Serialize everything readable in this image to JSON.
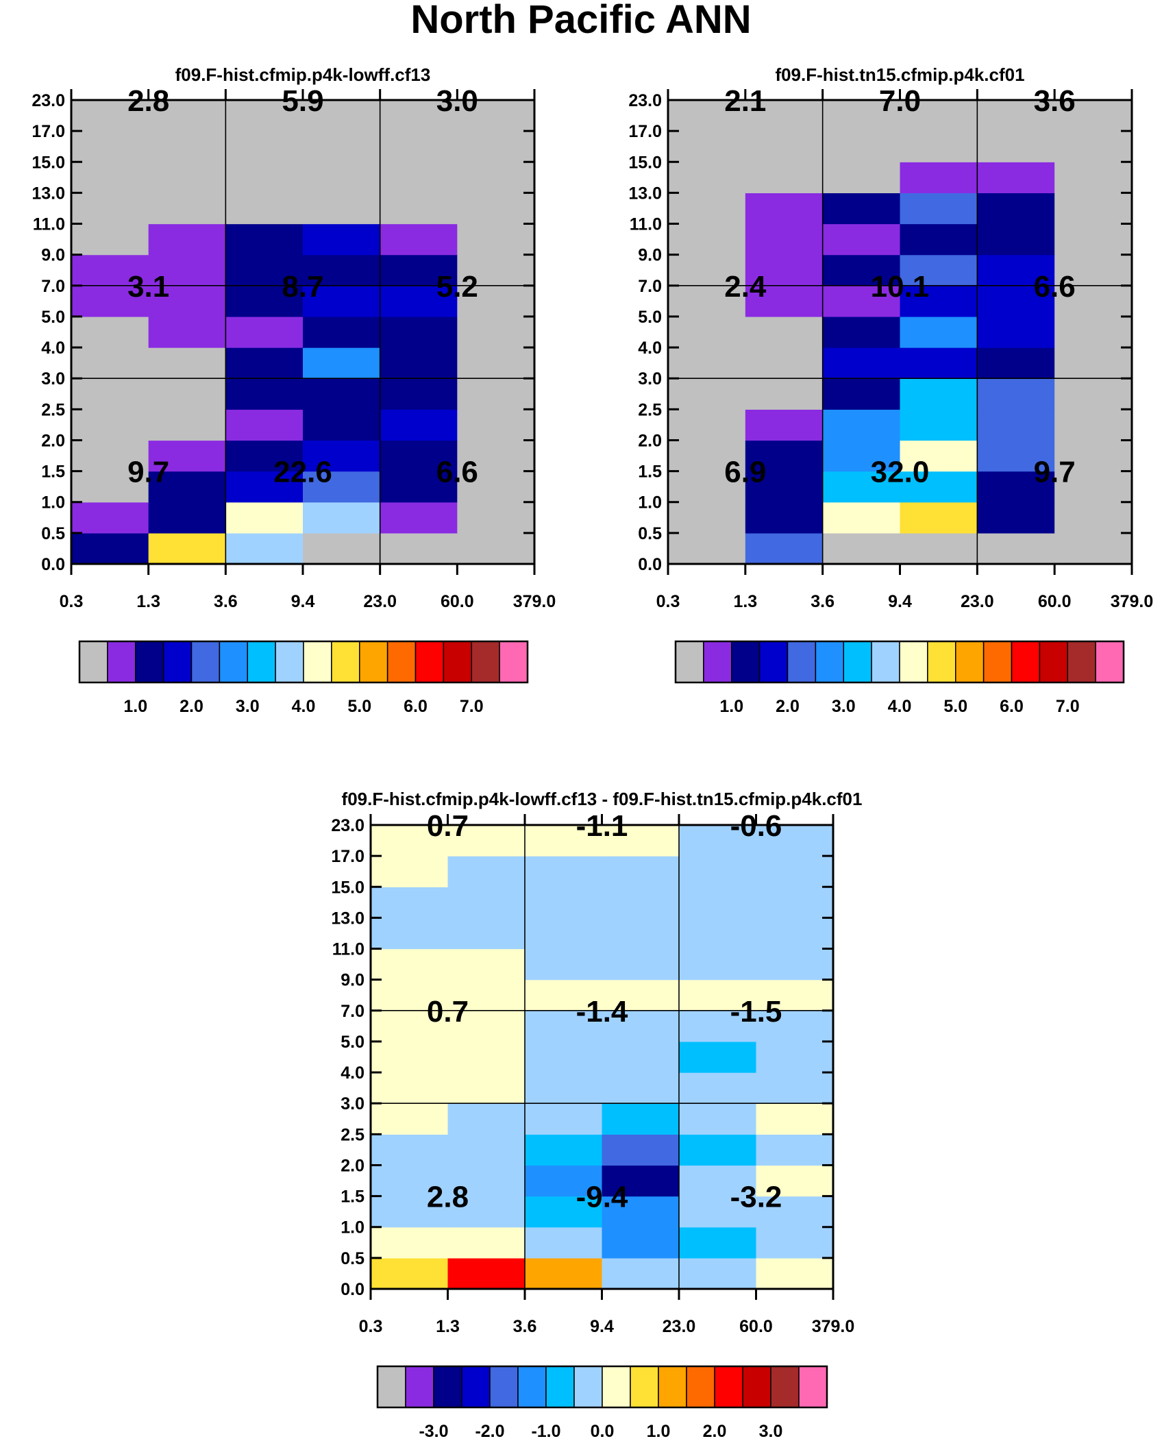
{
  "page_title": "North Pacific ANN",
  "chart_data": [
    {
      "type": "heatmap",
      "title": "f09.F-hist.cfmip.p4k-lowff.cf13",
      "x_tick_labels": [
        "0.3",
        "1.3",
        "3.6",
        "9.4",
        "23.0",
        "60.0",
        "379.0"
      ],
      "y_tick_labels": [
        "0.0",
        "0.5",
        "1.0",
        "1.5",
        "2.0",
        "2.5",
        "3.0",
        "4.0",
        "5.0",
        "7.0",
        "9.0",
        "11.0",
        "13.0",
        "15.0",
        "17.0",
        "23.0"
      ],
      "cells_bottom_to_top": [
        [
          2,
          9,
          7,
          0,
          0,
          0
        ],
        [
          1,
          2,
          8,
          7,
          1,
          0
        ],
        [
          0,
          2,
          3,
          4,
          2,
          0
        ],
        [
          0,
          1,
          2,
          3,
          2,
          0
        ],
        [
          0,
          0,
          1,
          2,
          3,
          0
        ],
        [
          0,
          0,
          2,
          2,
          2,
          0
        ],
        [
          0,
          0,
          2,
          5,
          2,
          0
        ],
        [
          0,
          1,
          1,
          2,
          2,
          0
        ],
        [
          1,
          1,
          2,
          3,
          3,
          0
        ],
        [
          1,
          1,
          2,
          2,
          2,
          0
        ],
        [
          0,
          1,
          2,
          3,
          1,
          0
        ],
        [
          0,
          0,
          0,
          0,
          0,
          0
        ],
        [
          0,
          0,
          0,
          0,
          0,
          0
        ],
        [
          0,
          0,
          0,
          0,
          0,
          0
        ],
        [
          0,
          0,
          0,
          0,
          0,
          0
        ]
      ],
      "region_labels": [
        {
          "col": 0,
          "row": 0,
          "value": "9.7"
        },
        {
          "col": 1,
          "row": 0,
          "value": "22.6"
        },
        {
          "col": 2,
          "row": 0,
          "value": "6.6"
        },
        {
          "col": 0,
          "row": 1,
          "value": "3.1"
        },
        {
          "col": 1,
          "row": 1,
          "value": "8.7"
        },
        {
          "col": 2,
          "row": 1,
          "value": "5.2"
        },
        {
          "col": 0,
          "row": 2,
          "value": "2.8"
        },
        {
          "col": 1,
          "row": 2,
          "value": "5.9"
        },
        {
          "col": 2,
          "row": 2,
          "value": "3.0"
        }
      ],
      "legend": {
        "colors": [
          "#c0c0c0",
          "#8a2be2",
          "#00008b",
          "#0000cd",
          "#4169e1",
          "#1e90ff",
          "#00bfff",
          "#a0d2ff",
          "#ffffcc",
          "#ffe135",
          "#ffa500",
          "#ff6a00",
          "#ff0000",
          "#c80000",
          "#a52a2a",
          "#ff69b4"
        ],
        "tick_labels": [
          "1.0",
          "2.0",
          "3.0",
          "4.0",
          "5.0",
          "6.0",
          "7.0"
        ]
      }
    },
    {
      "type": "heatmap",
      "title": "f09.F-hist.tn15.cfmip.p4k.cf01",
      "x_tick_labels": [
        "0.3",
        "1.3",
        "3.6",
        "9.4",
        "23.0",
        "60.0",
        "379.0"
      ],
      "y_tick_labels": [
        "0.0",
        "0.5",
        "1.0",
        "1.5",
        "2.0",
        "2.5",
        "3.0",
        "4.0",
        "5.0",
        "7.0",
        "9.0",
        "11.0",
        "13.0",
        "15.0",
        "17.0",
        "23.0"
      ],
      "cells_bottom_to_top": [
        [
          0,
          4,
          0,
          0,
          0,
          0
        ],
        [
          0,
          2,
          8,
          9,
          2,
          0
        ],
        [
          0,
          2,
          6,
          6,
          2,
          0
        ],
        [
          0,
          2,
          5,
          8,
          4,
          0
        ],
        [
          0,
          1,
          5,
          6,
          4,
          0
        ],
        [
          0,
          0,
          2,
          6,
          4,
          0
        ],
        [
          0,
          0,
          3,
          3,
          2,
          0
        ],
        [
          0,
          0,
          2,
          5,
          3,
          0
        ],
        [
          0,
          1,
          1,
          3,
          3,
          0
        ],
        [
          0,
          1,
          2,
          4,
          3,
          0
        ],
        [
          0,
          1,
          1,
          2,
          2,
          0
        ],
        [
          0,
          1,
          2,
          4,
          2,
          0
        ],
        [
          0,
          0,
          0,
          1,
          1,
          0
        ],
        [
          0,
          0,
          0,
          0,
          0,
          0
        ],
        [
          0,
          0,
          0,
          0,
          0,
          0
        ]
      ],
      "region_labels": [
        {
          "col": 0,
          "row": 0,
          "value": "6.9"
        },
        {
          "col": 1,
          "row": 0,
          "value": "32.0"
        },
        {
          "col": 2,
          "row": 0,
          "value": "9.7"
        },
        {
          "col": 0,
          "row": 1,
          "value": "2.4"
        },
        {
          "col": 1,
          "row": 1,
          "value": "10.1"
        },
        {
          "col": 2,
          "row": 1,
          "value": "6.6"
        },
        {
          "col": 0,
          "row": 2,
          "value": "2.1"
        },
        {
          "col": 1,
          "row": 2,
          "value": "7.0"
        },
        {
          "col": 2,
          "row": 2,
          "value": "3.6"
        }
      ],
      "legend": {
        "colors": [
          "#c0c0c0",
          "#8a2be2",
          "#00008b",
          "#0000cd",
          "#4169e1",
          "#1e90ff",
          "#00bfff",
          "#a0d2ff",
          "#ffffcc",
          "#ffe135",
          "#ffa500",
          "#ff6a00",
          "#ff0000",
          "#c80000",
          "#a52a2a",
          "#ff69b4"
        ],
        "tick_labels": [
          "1.0",
          "2.0",
          "3.0",
          "4.0",
          "5.0",
          "6.0",
          "7.0"
        ]
      }
    },
    {
      "type": "heatmap",
      "title": "f09.F-hist.cfmip.p4k-lowff.cf13 - f09.F-hist.tn15.cfmip.p4k.cf01",
      "x_tick_labels": [
        "0.3",
        "1.3",
        "3.6",
        "9.4",
        "23.0",
        "60.0",
        "379.0"
      ],
      "y_tick_labels": [
        "0.0",
        "0.5",
        "1.0",
        "1.5",
        "2.0",
        "2.5",
        "3.0",
        "4.0",
        "5.0",
        "7.0",
        "9.0",
        "11.0",
        "13.0",
        "15.0",
        "17.0",
        "23.0"
      ],
      "cells_bottom_to_top": [
        [
          9,
          12,
          10,
          7,
          7,
          8
        ],
        [
          8,
          8,
          7,
          5,
          6,
          7
        ],
        [
          7,
          7,
          6,
          5,
          7,
          7
        ],
        [
          7,
          7,
          5,
          2,
          7,
          8
        ],
        [
          7,
          7,
          6,
          4,
          6,
          7
        ],
        [
          8,
          7,
          7,
          6,
          7,
          8
        ],
        [
          8,
          8,
          7,
          7,
          7,
          7
        ],
        [
          8,
          8,
          7,
          7,
          6,
          7
        ],
        [
          8,
          8,
          7,
          7,
          7,
          7
        ],
        [
          8,
          8,
          8,
          8,
          8,
          8
        ],
        [
          8,
          8,
          7,
          7,
          7,
          7
        ],
        [
          7,
          7,
          7,
          7,
          7,
          7
        ],
        [
          7,
          7,
          7,
          7,
          7,
          7
        ],
        [
          8,
          7,
          7,
          7,
          7,
          7
        ],
        [
          8,
          8,
          8,
          8,
          7,
          7
        ]
      ],
      "region_labels": [
        {
          "col": 0,
          "row": 0,
          "value": "2.8"
        },
        {
          "col": 1,
          "row": 0,
          "value": "-9.4"
        },
        {
          "col": 2,
          "row": 0,
          "value": "-3.2"
        },
        {
          "col": 0,
          "row": 1,
          "value": "0.7"
        },
        {
          "col": 1,
          "row": 1,
          "value": "-1.4"
        },
        {
          "col": 2,
          "row": 1,
          "value": "-1.5"
        },
        {
          "col": 0,
          "row": 2,
          "value": "0.7"
        },
        {
          "col": 1,
          "row": 2,
          "value": "-1.1"
        },
        {
          "col": 2,
          "row": 2,
          "value": "-0.6"
        }
      ],
      "legend": {
        "colors": [
          "#c0c0c0",
          "#8a2be2",
          "#00008b",
          "#0000cd",
          "#4169e1",
          "#1e90ff",
          "#00bfff",
          "#a0d2ff",
          "#ffffcc",
          "#ffe135",
          "#ffa500",
          "#ff6a00",
          "#ff0000",
          "#c80000",
          "#a52a2a",
          "#ff69b4"
        ],
        "tick_labels": [
          "-3.0",
          "-2.0",
          "-1.0",
          "0.0",
          "1.0",
          "2.0",
          "3.0"
        ]
      }
    }
  ]
}
